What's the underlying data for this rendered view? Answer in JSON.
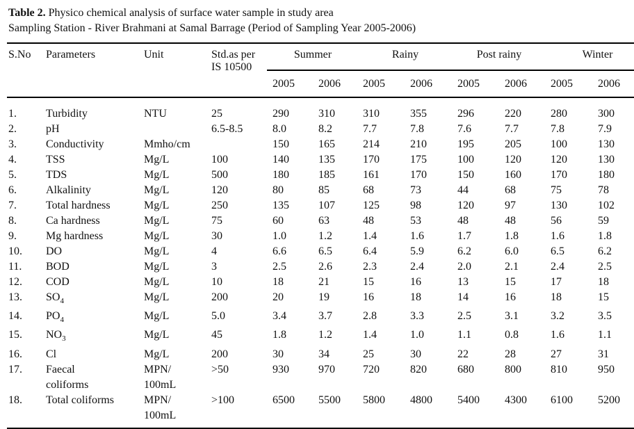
{
  "caption": {
    "label": "Table 2.",
    "title": "Physico chemical analysis of surface water sample in study area"
  },
  "subtitle": "Sampling Station - River Brahmani at Samal Barrage (Period of Sampling Year 2005-2006)",
  "table": {
    "columns": [
      "S.No",
      "Parameters",
      "Unit",
      [
        "Std.as per",
        "IS 10500"
      ]
    ],
    "seasons": [
      "Summer",
      "Rainy",
      "Post rainy",
      "Winter"
    ],
    "years": [
      "2005",
      "2006",
      "2005",
      "2006",
      "2005",
      "2006",
      "2005",
      "2006"
    ],
    "rows": [
      [
        "1.",
        "Turbidity",
        "NTU",
        "25",
        "290",
        "310",
        "310",
        "355",
        "296",
        "220",
        "280",
        "300"
      ],
      [
        "2.",
        "pH",
        null,
        "6.5-8.5",
        "8.0",
        "8.2",
        "7.7",
        "7.8",
        "7.6",
        "7.7",
        "7.8",
        "7.9"
      ],
      [
        "3.",
        "Conductivity",
        "Mmho/cm",
        null,
        "150",
        "165",
        "214",
        "210",
        "195",
        "205",
        "100",
        "130"
      ],
      [
        "4.",
        "TSS",
        "Mg/L",
        "100",
        "140",
        "135",
        "170",
        "175",
        "100",
        "120",
        "120",
        "130"
      ],
      [
        "5.",
        "TDS",
        "Mg/L",
        "500",
        "180",
        "185",
        "161",
        "170",
        "150",
        "160",
        "170",
        "180"
      ],
      [
        "6.",
        "Alkalinity",
        "Mg/L",
        "120",
        "80",
        "85",
        "68",
        "73",
        "44",
        "68",
        "75",
        "78"
      ],
      [
        "7.",
        "Total hardness",
        "Mg/L",
        "250",
        "135",
        "107",
        "125",
        "98",
        "120",
        "97",
        "130",
        "102"
      ],
      [
        "8.",
        "Ca hardness",
        "Mg/L",
        "75",
        "60",
        "63",
        "48",
        "53",
        "48",
        "48",
        "56",
        "59"
      ],
      [
        "9.",
        "Mg hardness",
        "Mg/L",
        "30",
        "1.0",
        "1.2",
        "1.4",
        "1.6",
        "1.7",
        "1.8",
        "1.6",
        "1.8"
      ],
      [
        "10.",
        "DO",
        "Mg/L",
        "4",
        "6.6",
        "6.5",
        "6.4",
        "5.9",
        "6.2",
        "6.0",
        "6.5",
        "6.2"
      ],
      [
        "11.",
        "BOD",
        "Mg/L",
        "3",
        "2.5",
        "2.6",
        "2.3",
        "2.4",
        "2.0",
        "2.1",
        "2.4",
        "2.5"
      ],
      [
        "12.",
        "COD",
        "Mg/L",
        "10",
        "18",
        "21",
        "15",
        "16",
        "13",
        "15",
        "17",
        "18"
      ],
      [
        "13.",
        {
          "base": "SO",
          "sub": "4"
        },
        "Mg/L",
        "200",
        "20",
        "19",
        "16",
        "18",
        "14",
        "16",
        "18",
        "15"
      ],
      [
        "14.",
        {
          "base": "PO",
          "sub": "4"
        },
        "Mg/L",
        "5.0",
        "3.4",
        "3.7",
        "2.8",
        "3.3",
        "2.5",
        "3.1",
        "3.2",
        "3.5"
      ],
      [
        "15.",
        {
          "base": "NO",
          "sub": "3"
        },
        "Mg/L",
        "45",
        "1.8",
        "1.2",
        "1.4",
        "1.0",
        "1.1",
        "0.8",
        "1.6",
        "1.1"
      ],
      [
        "16.",
        "Cl",
        "Mg/L",
        "200",
        "30",
        "34",
        "25",
        "30",
        "22",
        "28",
        "27",
        "31"
      ],
      [
        "17.",
        [
          "Faecal",
          "coliforms"
        ],
        [
          "MPN/",
          "100mL"
        ],
        ">50",
        "930",
        "970",
        "720",
        "820",
        "680",
        "800",
        "810",
        "950"
      ],
      [
        "18.",
        "Total coliforms",
        [
          "MPN/",
          "100mL"
        ],
        ">100",
        "6500",
        "5500",
        "5800",
        "4800",
        "5400",
        "4300",
        "6100",
        "5200"
      ]
    ]
  }
}
